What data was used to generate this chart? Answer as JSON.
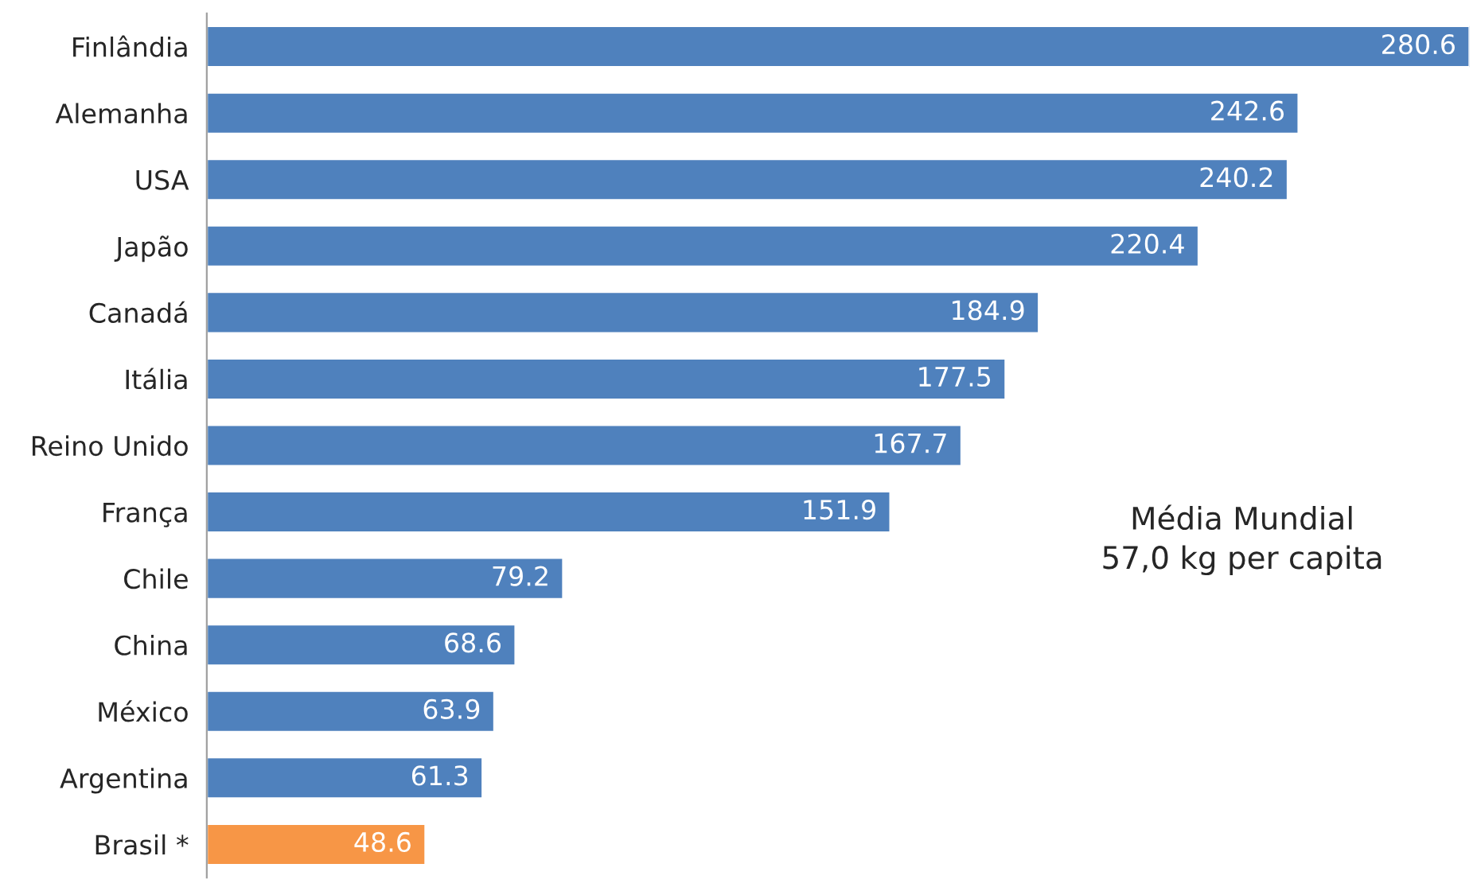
{
  "chart_data": {
    "type": "bar",
    "orientation": "horizontal",
    "categories": [
      "Finlândia",
      "Alemanha",
      "USA",
      "Japão",
      "Canadá",
      "Itália",
      "Reino Unido",
      "França",
      "Chile",
      "China",
      "México",
      "Argentina",
      "Brasil *"
    ],
    "values": [
      280.6,
      242.6,
      240.2,
      220.4,
      184.9,
      177.5,
      167.7,
      151.9,
      79.2,
      68.6,
      63.9,
      61.3,
      48.6
    ],
    "colors": [
      "#4f81bd",
      "#4f81bd",
      "#4f81bd",
      "#4f81bd",
      "#4f81bd",
      "#4f81bd",
      "#4f81bd",
      "#4f81bd",
      "#4f81bd",
      "#4f81bd",
      "#4f81bd",
      "#4f81bd",
      "#f79646"
    ],
    "data_labels": true,
    "grid": false,
    "legend": false,
    "annotations": [
      "Média Mundial\n57,0 kg per capita"
    ]
  }
}
